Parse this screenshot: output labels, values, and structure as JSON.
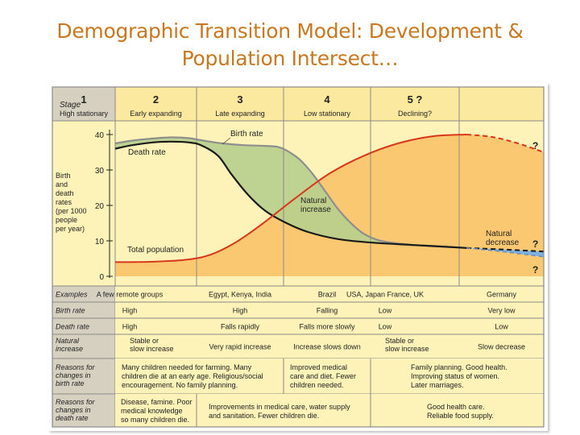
{
  "slide": {
    "title_line1": "Demographic Transition Model: Development &",
    "title_line2": "Population Intersect…"
  },
  "figure": {
    "stage_header": "Stage",
    "stages": [
      {
        "number": "1",
        "name": "High stationary"
      },
      {
        "number": "2",
        "name": "Early expanding"
      },
      {
        "number": "3",
        "name": "Late expanding"
      },
      {
        "number": "4",
        "name": "Low stationary"
      },
      {
        "number": "5 ?",
        "name": "Declining?"
      }
    ],
    "y_axis_label": [
      "Birth",
      "and",
      "death",
      "rates",
      "(per 1000",
      "people",
      "per year)"
    ],
    "y_ticks": [
      "40",
      "30",
      "20",
      "10",
      "0"
    ],
    "curve_labels": {
      "birth_rate": "Birth rate",
      "death_rate": "Death rate",
      "total_population": "Total population",
      "natural_increase": [
        "Natural",
        "increase"
      ],
      "natural_decrease": [
        "Natural",
        "decrease"
      ],
      "question_marks": [
        "?",
        "?",
        "?"
      ]
    },
    "table_rows": [
      {
        "label": [
          "Examples"
        ],
        "cells": [
          [
            "A few remote groups"
          ],
          [
            "Egypt, Kenya, India"
          ],
          [
            "Brazil"
          ],
          [
            "USA, Japan France, UK"
          ],
          [
            "Germany"
          ]
        ]
      },
      {
        "label": [
          "Birth rate"
        ],
        "cells": [
          [
            "High"
          ],
          [
            "High"
          ],
          [
            "Falling"
          ],
          [
            "Low"
          ],
          [
            "Very low"
          ]
        ]
      },
      {
        "label": [
          "Death rate"
        ],
        "cells": [
          [
            "High"
          ],
          [
            "Falls rapidly"
          ],
          [
            "Falls more slowly"
          ],
          [
            "Low"
          ],
          [
            "Low"
          ]
        ]
      },
      {
        "label": [
          "Natural",
          "increase"
        ],
        "cells": [
          [
            "Stable or",
            "slow increase"
          ],
          [
            "Very rapid increase"
          ],
          [
            "Increase slows down"
          ],
          [
            "Stable or",
            "slow increase"
          ],
          [
            "Slow decrease"
          ]
        ]
      }
    ],
    "reasons_birth": {
      "label": [
        "Reasons for",
        "changes in",
        "birth rate"
      ],
      "left": [
        "Many children needed for farming. Many",
        "children die at an early age. Religious/social",
        "encouragement. No family planning."
      ],
      "middle": [
        "Improved medical",
        "care and diet. Fewer",
        "children needed."
      ],
      "right": [
        "Family planning. Good health.",
        "Improving status of women.",
        "Later marriages."
      ]
    },
    "reasons_death": {
      "label": [
        "Reasons for",
        "changes in",
        "death rate"
      ],
      "left": [
        "Disease, famine. Poor",
        "medical knowledge",
        "so many children die."
      ],
      "middle": [
        "Improvements in medical care, water supply",
        "and sanitation. Fewer children die."
      ],
      "right": [
        "Good health care.",
        "Reliable food supply."
      ]
    },
    "colors": {
      "stage_yellow": "#fdf3b8",
      "header_yellow": "#fbe9a0",
      "population_orange": "#fbc872",
      "natural_increase_green": "#b7cf8e",
      "natural_decrease_blue": "#7fb1e0",
      "birth_line": "#8e8e8e",
      "death_line": "#1a1a1a",
      "population_line": "#d9361c",
      "label_column": "#d6d0c0",
      "grid_line": "#8a8a8a"
    }
  }
}
